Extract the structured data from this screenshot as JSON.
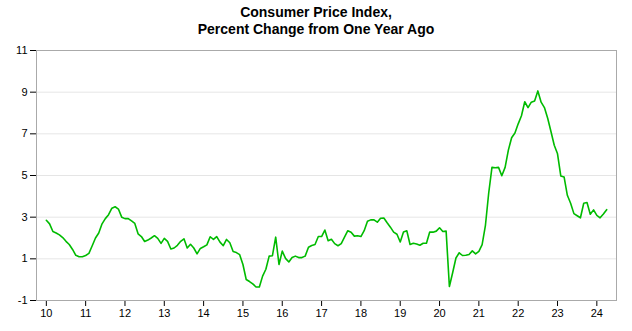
{
  "chart_data": {
    "type": "line",
    "title": "Consumer Price Index,\nPercent Change from One Year Ago",
    "color": "#00BB00",
    "grid": "y",
    "xlim": [
      9.75,
      24.5
    ],
    "ylim": [
      -1,
      11
    ],
    "xticks": [
      10,
      11,
      12,
      13,
      14,
      15,
      16,
      17,
      18,
      19,
      20,
      21,
      22,
      23,
      24
    ],
    "yticks": [
      -1,
      1,
      3,
      5,
      7,
      9,
      11
    ],
    "x": [
      10.0,
      10.083,
      10.167,
      10.25,
      10.333,
      10.417,
      10.5,
      10.583,
      10.667,
      10.75,
      10.833,
      10.917,
      11.0,
      11.083,
      11.167,
      11.25,
      11.333,
      11.417,
      11.5,
      11.583,
      11.667,
      11.75,
      11.833,
      11.917,
      12.0,
      12.083,
      12.167,
      12.25,
      12.333,
      12.417,
      12.5,
      12.583,
      12.667,
      12.75,
      12.833,
      12.917,
      13.0,
      13.083,
      13.167,
      13.25,
      13.333,
      13.417,
      13.5,
      13.583,
      13.667,
      13.75,
      13.833,
      13.917,
      14.0,
      14.083,
      14.167,
      14.25,
      14.333,
      14.417,
      14.5,
      14.583,
      14.667,
      14.75,
      14.833,
      14.917,
      15.0,
      15.083,
      15.167,
      15.25,
      15.333,
      15.417,
      15.5,
      15.583,
      15.667,
      15.75,
      15.833,
      15.917,
      16.0,
      16.083,
      16.167,
      16.25,
      16.333,
      16.417,
      16.5,
      16.583,
      16.667,
      16.75,
      16.833,
      16.917,
      17.0,
      17.083,
      17.167,
      17.25,
      17.333,
      17.417,
      17.5,
      17.583,
      17.667,
      17.75,
      17.833,
      17.917,
      18.0,
      18.083,
      18.167,
      18.25,
      18.333,
      18.417,
      18.5,
      18.583,
      18.667,
      18.75,
      18.833,
      18.917,
      19.0,
      19.083,
      19.167,
      19.25,
      19.333,
      19.417,
      19.5,
      19.583,
      19.667,
      19.75,
      19.833,
      19.917,
      20.0,
      20.083,
      20.167,
      20.25,
      20.333,
      20.417,
      20.5,
      20.583,
      20.667,
      20.75,
      20.833,
      20.917,
      21.0,
      21.083,
      21.167,
      21.25,
      21.333,
      21.417,
      21.5,
      21.583,
      21.667,
      21.75,
      21.833,
      21.917,
      22.0,
      22.083,
      22.167,
      22.25,
      22.333,
      22.417,
      22.5,
      22.583,
      22.667,
      22.75,
      22.833,
      22.917,
      23.0,
      23.083,
      23.167,
      23.25,
      23.333,
      23.417,
      23.5,
      23.583,
      23.667,
      23.75,
      23.833,
      23.917,
      24.0,
      24.083,
      24.167,
      24.25
    ],
    "values": [
      2.85,
      2.68,
      2.31,
      2.24,
      2.15,
      2.02,
      1.84,
      1.69,
      1.45,
      1.17,
      1.1,
      1.1,
      1.16,
      1.26,
      1.63,
      2.0,
      2.24,
      2.68,
      2.93,
      3.12,
      3.43,
      3.5,
      3.39,
      3.0,
      2.93,
      2.93,
      2.82,
      2.7,
      2.2,
      2.07,
      1.83,
      1.9,
      2.0,
      2.11,
      1.98,
      1.74,
      1.98,
      1.84,
      1.47,
      1.52,
      1.65,
      1.84,
      1.96,
      1.52,
      1.7,
      1.52,
      1.24,
      1.5,
      1.58,
      1.67,
      2.06,
      1.93,
      2.07,
      1.8,
      1.63,
      1.93,
      1.77,
      1.35,
      1.3,
      1.2,
      0.73,
      0.01,
      -0.09,
      -0.2,
      -0.35,
      -0.35,
      0.17,
      0.5,
      1.13,
      1.15,
      2.04,
      0.73,
      1.37,
      1.02,
      0.85,
      1.06,
      1.13,
      1.06,
      1.06,
      1.13,
      1.56,
      1.64,
      1.69,
      2.07,
      2.07,
      2.38,
      1.87,
      1.94,
      1.73,
      1.63,
      1.73,
      2.04,
      2.35,
      2.28,
      2.09,
      2.11,
      2.07,
      2.35,
      2.8,
      2.87,
      2.87,
      2.76,
      2.95,
      2.96,
      2.73,
      2.52,
      2.28,
      2.18,
      1.81,
      2.29,
      2.35,
      1.69,
      1.75,
      1.71,
      1.65,
      1.75,
      1.75,
      2.29,
      2.28,
      2.33,
      2.49,
      2.31,
      2.33,
      -0.33,
      0.33,
      1.04,
      1.29,
      1.16,
      1.17,
      1.21,
      1.38,
      1.24,
      1.36,
      1.68,
      2.61,
      4.16,
      5.39,
      5.37,
      5.39,
      4.99,
      5.39,
      6.22,
      6.81,
      7.04,
      7.48,
      7.87,
      8.54,
      8.26,
      8.52,
      8.58,
      9.06,
      8.52,
      8.26,
      7.75,
      7.11,
      6.45,
      6.04,
      4.98,
      4.93,
      4.05,
      3.67,
      3.17,
      3.07,
      2.97,
      3.67,
      3.7,
      3.14,
      3.35,
      3.09,
      2.97,
      3.15,
      3.36
    ]
  }
}
